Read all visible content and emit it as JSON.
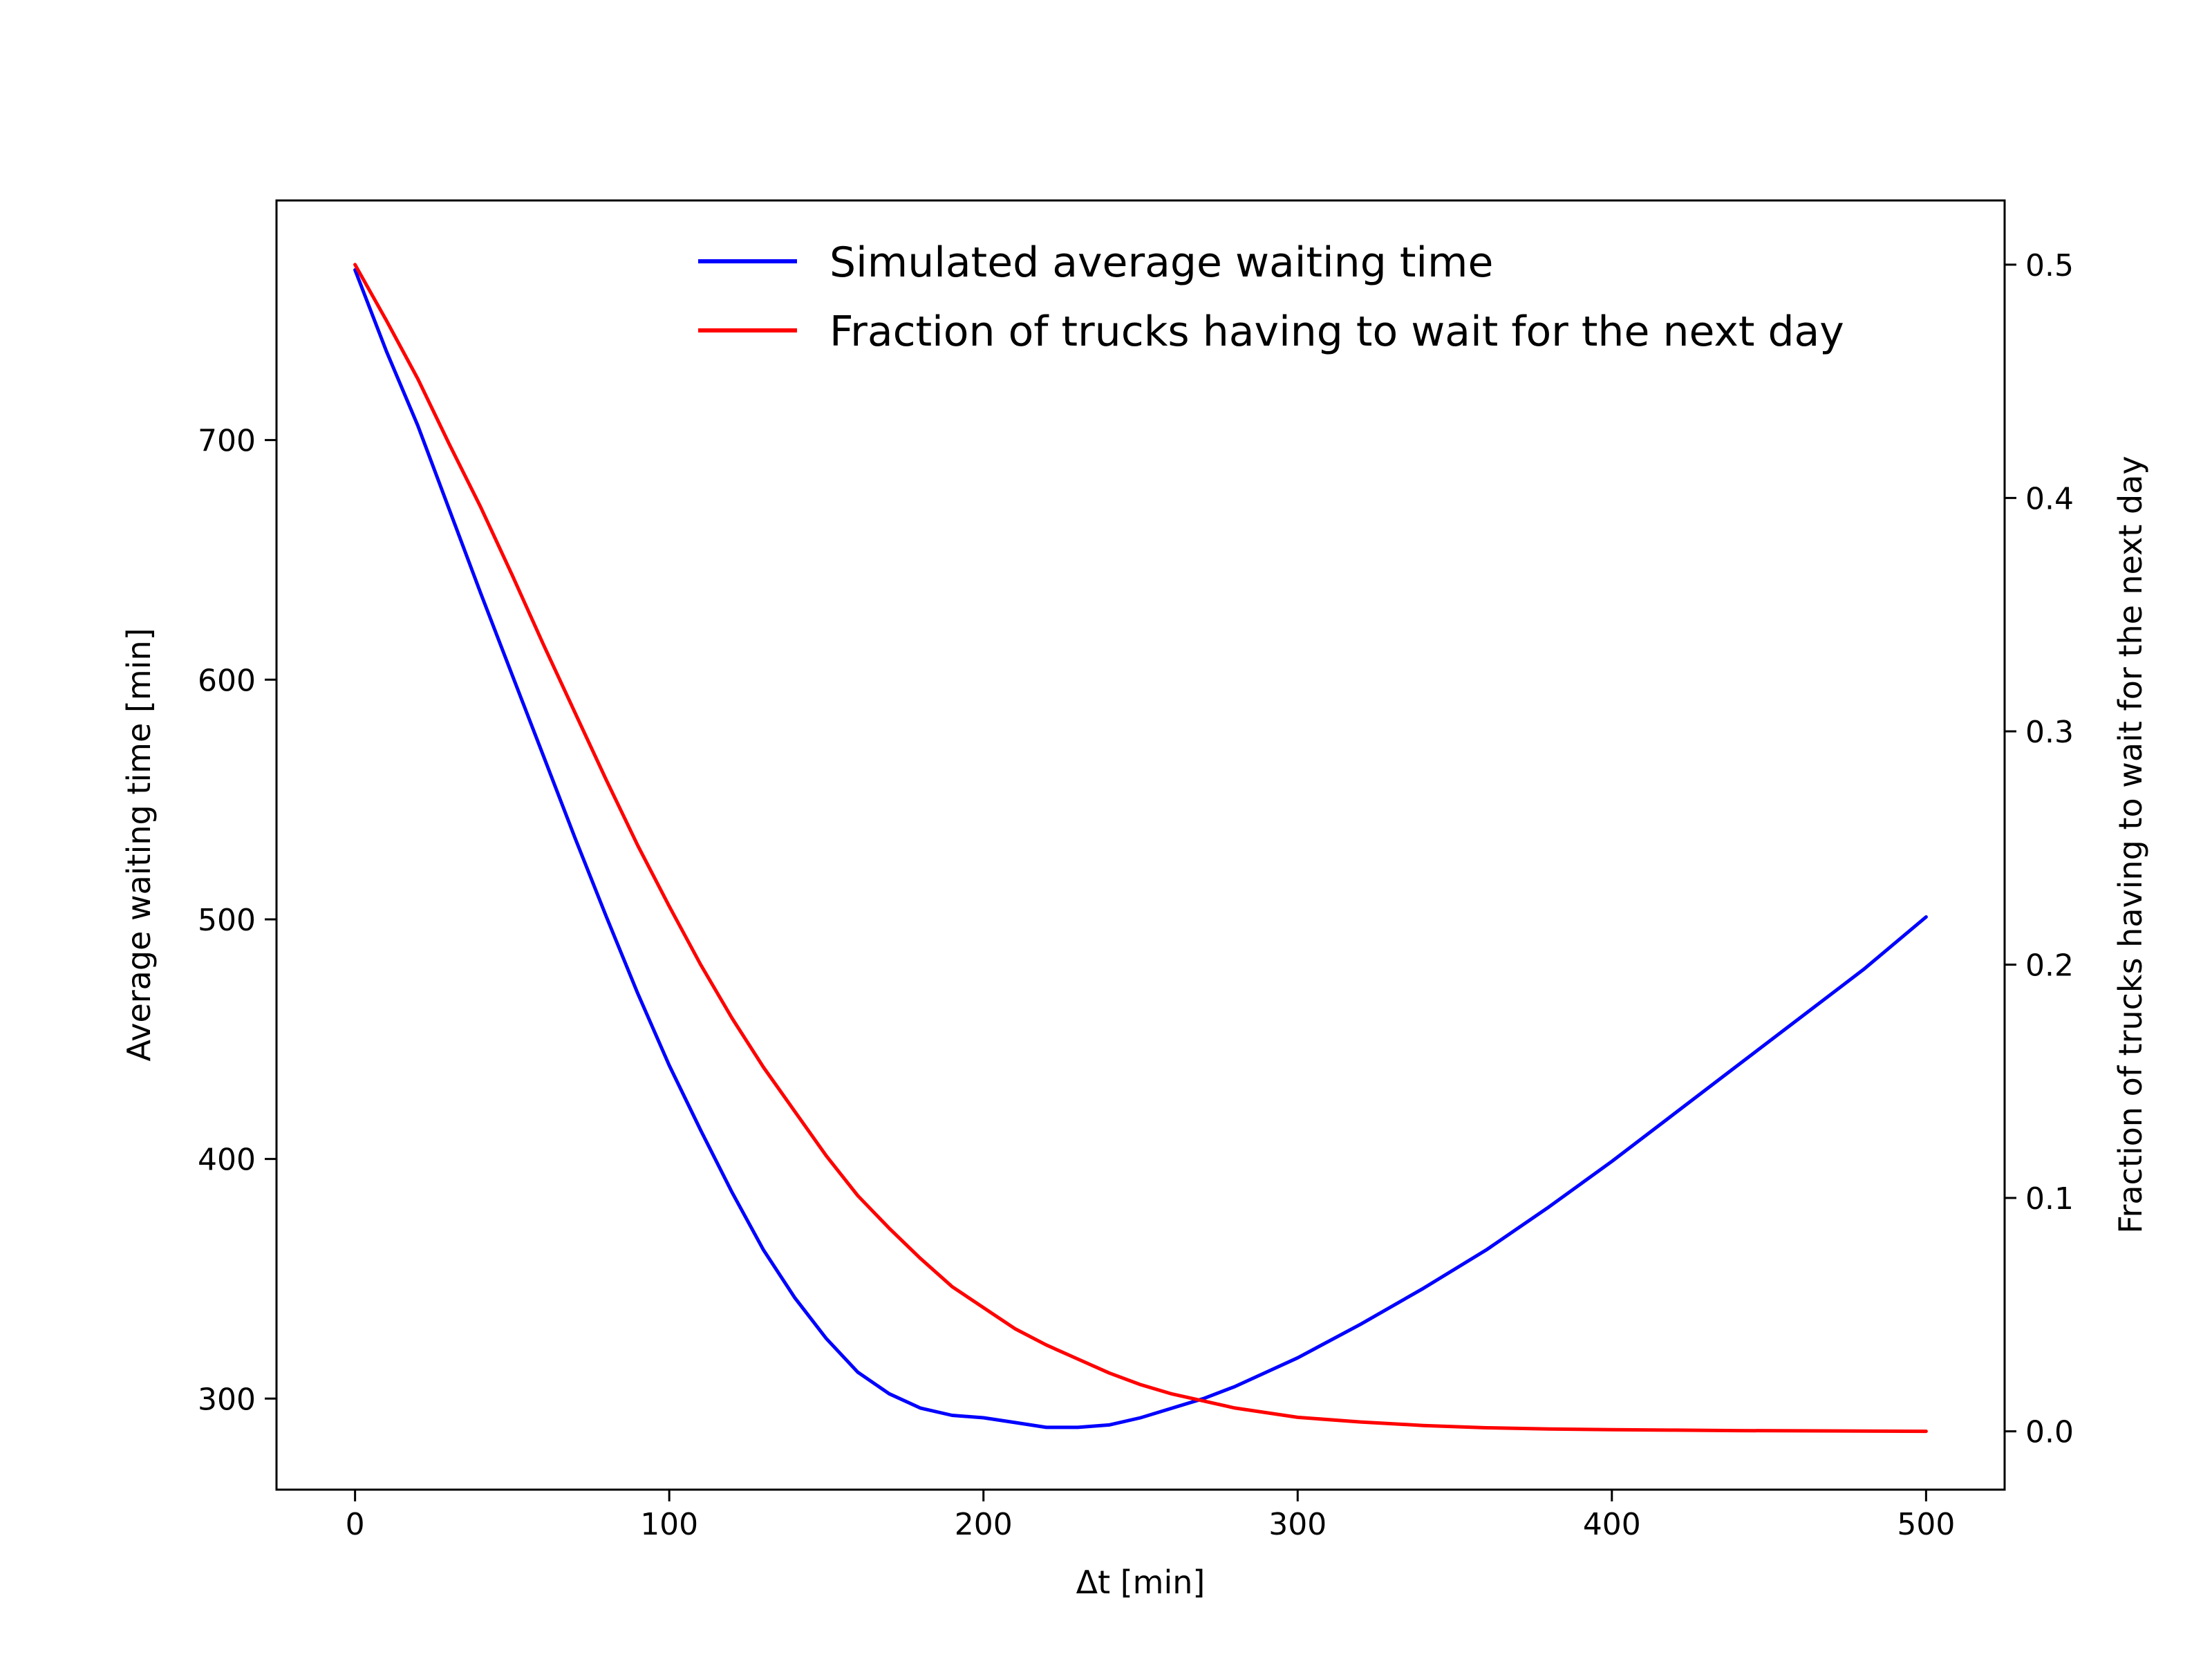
{
  "chart_data": {
    "type": "line",
    "title": "",
    "xlabel": "Δt [min]",
    "ylabel_left": "Average waiting time [min]",
    "ylabel_right": "Fraction of trucks having to wait for the next day",
    "xlim": [
      -25,
      525
    ],
    "ylim_left": [
      262,
      800
    ],
    "ylim_right": [
      -0.025,
      0.5275
    ],
    "x_ticks": [
      0,
      100,
      200,
      300,
      400,
      500
    ],
    "x_tick_labels": [
      "0",
      "100",
      "200",
      "300",
      "400",
      "500"
    ],
    "y_left_ticks": [
      300,
      400,
      500,
      600,
      700
    ],
    "y_left_tick_labels": [
      "300",
      "400",
      "500",
      "600",
      "700"
    ],
    "y_right_ticks": [
      0.0,
      0.1,
      0.2,
      0.3,
      0.4,
      0.5
    ],
    "y_right_tick_labels": [
      "0.0",
      "0.1",
      "0.2",
      "0.3",
      "0.4",
      "0.5"
    ],
    "grid": false,
    "legend_position": "top-right",
    "series": [
      {
        "name": "Simulated average waiting time",
        "axis": "left",
        "color": "#0000ff",
        "x": [
          0,
          10,
          20,
          30,
          40,
          50,
          60,
          70,
          80,
          90,
          100,
          110,
          120,
          130,
          140,
          150,
          160,
          170,
          180,
          190,
          200,
          210,
          220,
          230,
          240,
          250,
          260,
          270,
          280,
          290,
          300,
          320,
          340,
          360,
          380,
          400,
          420,
          440,
          460,
          480,
          500
        ],
        "values": [
          771,
          737,
          706,
          671,
          636,
          602,
          568,
          534,
          501,
          469,
          439,
          412,
          386,
          362,
          342,
          325,
          311,
          302,
          296,
          293,
          292,
          290,
          288,
          288,
          289,
          292,
          296,
          300,
          305,
          311,
          317,
          331,
          346,
          362,
          380,
          399,
          419,
          439,
          459,
          479,
          501
        ]
      },
      {
        "name": "Fraction of trucks having to wait for the next day",
        "axis": "right",
        "color": "#ff0000",
        "x": [
          0,
          10,
          20,
          30,
          40,
          50,
          60,
          70,
          80,
          90,
          100,
          110,
          120,
          130,
          140,
          150,
          160,
          170,
          180,
          190,
          200,
          210,
          220,
          230,
          240,
          250,
          260,
          270,
          280,
          290,
          300,
          320,
          340,
          360,
          380,
          400,
          420,
          440,
          460,
          480,
          500
        ],
        "values": [
          0.5,
          0.476,
          0.451,
          0.423,
          0.396,
          0.367,
          0.337,
          0.308,
          0.279,
          0.251,
          0.225,
          0.2,
          0.177,
          0.156,
          0.137,
          0.118,
          0.101,
          0.087,
          0.074,
          0.062,
          0.053,
          0.044,
          0.037,
          0.031,
          0.025,
          0.02,
          0.016,
          0.013,
          0.01,
          0.008,
          0.006,
          0.004,
          0.0025,
          0.0015,
          0.001,
          0.0007,
          0.0005,
          0.0003,
          0.0002,
          0.0001,
          0.0
        ]
      }
    ]
  }
}
